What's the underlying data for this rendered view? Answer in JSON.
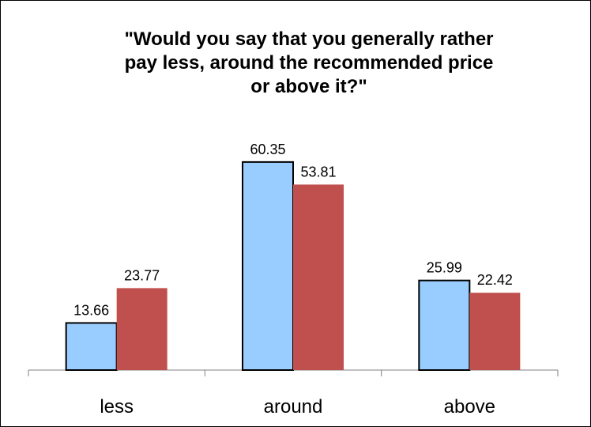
{
  "chart_data": {
    "type": "bar",
    "title": "\"Would you say that you generally rather\npay less, around the recommended price\nor above it?\"",
    "xlabel": "",
    "ylabel": "",
    "categories": [
      "less",
      "around",
      "above"
    ],
    "series": [
      {
        "values": [
          13.66,
          60.35,
          25.99
        ],
        "color": "#99ccff"
      },
      {
        "values": [
          23.77,
          53.81,
          22.42
        ],
        "color": "#c0504d"
      }
    ],
    "ylim": [
      0,
      70
    ],
    "grid": false,
    "legend": "none"
  }
}
